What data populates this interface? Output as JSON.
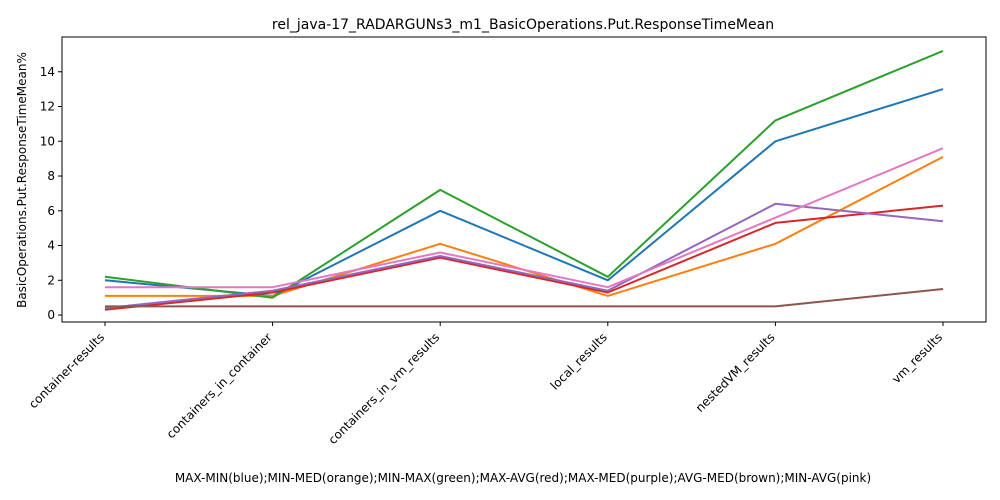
{
  "chart_data": {
    "type": "line",
    "title": "rel_java-17_RADARGUNs3_m1_BasicOperations.Put.ResponseTimeMean",
    "xlabel": "MAX-MIN(blue);MIN-MED(orange);MIN-MAX(green);MAX-AVG(red);MAX-MED(purple);AVG-MED(brown);MIN-AVG(pink)",
    "ylabel": "BasicOperations.Put.ResponseTimeMean%",
    "categories": [
      "container-results",
      "containers_in_container",
      "containers_in_vm_results",
      "local_results",
      "nestedVM_results",
      "vm_results"
    ],
    "ylim": [
      -0.4,
      16
    ],
    "yticks": [
      0,
      2,
      4,
      6,
      8,
      10,
      12,
      14
    ],
    "grid": false,
    "series": [
      {
        "color": "#1f77b4",
        "values": [
          2.0,
          1.1,
          6.0,
          2.0,
          10.0,
          13.0
        ]
      },
      {
        "color": "#ff7f0e",
        "values": [
          1.1,
          1.1,
          4.1,
          1.1,
          4.1,
          9.1
        ]
      },
      {
        "color": "#2ca02c",
        "values": [
          2.2,
          1.0,
          7.2,
          2.2,
          11.2,
          15.2
        ]
      },
      {
        "color": "#d62728",
        "values": [
          0.3,
          1.3,
          3.3,
          1.3,
          5.3,
          6.3
        ]
      },
      {
        "color": "#9467bd",
        "values": [
          0.4,
          1.4,
          3.4,
          1.4,
          6.4,
          5.4
        ]
      },
      {
        "color": "#8c564b",
        "values": [
          0.5,
          0.5,
          0.5,
          0.5,
          0.5,
          1.5
        ]
      },
      {
        "color": "#e377c2",
        "values": [
          1.6,
          1.6,
          3.6,
          1.6,
          5.6,
          9.6
        ]
      }
    ]
  }
}
